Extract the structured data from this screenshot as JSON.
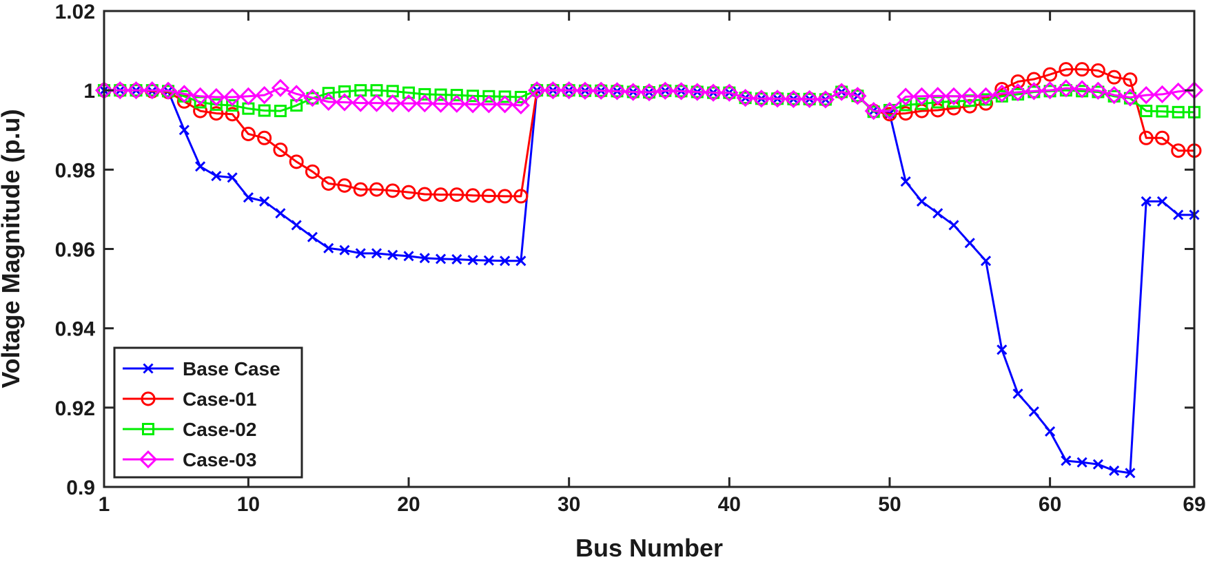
{
  "chart_data": {
    "type": "line",
    "title": "",
    "xlabel": "Bus Number",
    "ylabel": "Voltage Magnitude (p.u)",
    "xlim": [
      1,
      69
    ],
    "ylim": [
      0.9,
      1.02
    ],
    "xticks": [
      1,
      10,
      20,
      30,
      40,
      50,
      60,
      69
    ],
    "yticks": [
      0.9,
      0.92,
      0.94,
      0.96,
      0.98,
      1,
      1.02
    ],
    "xtick_labels": [
      "1",
      "10",
      "20",
      "30",
      "40",
      "50",
      "60",
      "69"
    ],
    "ytick_labels": [
      "0.9",
      "0.92",
      "0.94",
      "0.96",
      "0.98",
      "1",
      "1.02"
    ],
    "grid": false,
    "legend_position": "bottom-left",
    "x": [
      1,
      2,
      3,
      4,
      5,
      6,
      7,
      8,
      9,
      10,
      11,
      12,
      13,
      14,
      15,
      16,
      17,
      18,
      19,
      20,
      21,
      22,
      23,
      24,
      25,
      26,
      27,
      28,
      29,
      30,
      31,
      32,
      33,
      34,
      35,
      36,
      37,
      38,
      39,
      40,
      41,
      42,
      43,
      44,
      45,
      46,
      47,
      48,
      49,
      50,
      51,
      52,
      53,
      54,
      55,
      56,
      57,
      58,
      59,
      60,
      61,
      62,
      63,
      64,
      65,
      66,
      67,
      68,
      69
    ],
    "series": [
      {
        "name": "Base Case",
        "color": "#0000ff",
        "marker": "x",
        "values": [
          1.0,
          1.0,
          1.0,
          0.9998,
          0.9998,
          0.99,
          0.9808,
          0.9784,
          0.978,
          0.973,
          0.972,
          0.969,
          0.966,
          0.963,
          0.9602,
          0.9597,
          0.9589,
          0.9589,
          0.9585,
          0.9582,
          0.9577,
          0.9575,
          0.9574,
          0.9572,
          0.9571,
          0.957,
          0.957,
          1.0,
          1.0,
          1.0,
          0.9999,
          0.9999,
          0.9998,
          0.9996,
          0.9995,
          0.9999,
          0.9998,
          0.9996,
          0.9994,
          0.9994,
          0.9981,
          0.9979,
          0.9979,
          0.9978,
          0.9978,
          0.9977,
          0.9996,
          0.9986,
          0.9949,
          0.9941,
          0.977,
          0.972,
          0.969,
          0.966,
          0.9615,
          0.957,
          0.9346,
          0.9235,
          0.919,
          0.914,
          0.9066,
          0.9062,
          0.9057,
          0.9041,
          0.9035,
          0.972,
          0.972,
          0.9686,
          0.9686
        ]
      },
      {
        "name": "Case-01",
        "color": "#ff0000",
        "marker": "circle",
        "values": [
          1.0,
          1.0,
          1.0,
          0.9998,
          0.9996,
          0.9972,
          0.9948,
          0.9942,
          0.994,
          0.989,
          0.988,
          0.985,
          0.982,
          0.9795,
          0.9765,
          0.976,
          0.975,
          0.975,
          0.9747,
          0.9743,
          0.9738,
          0.9737,
          0.9737,
          0.9735,
          0.9734,
          0.9733,
          0.9733,
          1.0,
          1.0,
          1.0,
          0.9999,
          0.9999,
          0.9998,
          0.9996,
          0.9995,
          0.9999,
          0.9998,
          0.9996,
          0.9994,
          0.9994,
          0.9981,
          0.9979,
          0.9979,
          0.9978,
          0.9978,
          0.9977,
          0.9996,
          0.9986,
          0.9948,
          0.994,
          0.9942,
          0.9948,
          0.995,
          0.9955,
          0.996,
          0.9967,
          1.0003,
          1.0022,
          1.0028,
          1.004,
          1.0053,
          1.0053,
          1.005,
          1.0033,
          1.0027,
          0.988,
          0.988,
          0.9848,
          0.9848
        ]
      },
      {
        "name": "Case-02",
        "color": "#00ee00",
        "marker": "square",
        "values": [
          1.0,
          1.0,
          1.0,
          1.0,
          0.9998,
          0.9985,
          0.997,
          0.9964,
          0.9962,
          0.9954,
          0.9949,
          0.9948,
          0.9962,
          0.998,
          0.9993,
          0.9997,
          1.0,
          1.0,
          0.9998,
          0.9994,
          0.999,
          0.9989,
          0.9988,
          0.9986,
          0.9985,
          0.9984,
          0.9983,
          1.0,
          1.0,
          1.0,
          0.9999,
          0.9999,
          0.9998,
          0.9996,
          0.9995,
          0.9999,
          0.9998,
          0.9996,
          0.9994,
          0.9994,
          0.9981,
          0.9979,
          0.9979,
          0.9978,
          0.9978,
          0.9977,
          0.9996,
          0.9986,
          0.9946,
          0.995,
          0.9963,
          0.9966,
          0.997,
          0.9972,
          0.9974,
          0.9977,
          0.9985,
          0.999,
          0.9996,
          0.9998,
          1.0,
          0.9998,
          0.9996,
          0.9985,
          0.998,
          0.9948,
          0.9947,
          0.9945,
          0.9945
        ]
      },
      {
        "name": "Case-03",
        "color": "#ff00ff",
        "marker": "diamond",
        "values": [
          1.0,
          1.0,
          1.0,
          1.0,
          0.9999,
          0.9991,
          0.9985,
          0.9983,
          0.9983,
          0.9985,
          0.9988,
          1.0006,
          0.9991,
          0.9981,
          0.9971,
          0.997,
          0.9968,
          0.9968,
          0.9967,
          0.9967,
          0.9967,
          0.9966,
          0.9966,
          0.9965,
          0.9965,
          0.9965,
          0.9962,
          1.0,
          1.0,
          1.0,
          0.9999,
          0.9999,
          0.9998,
          0.9996,
          0.9995,
          0.9999,
          0.9998,
          0.9996,
          0.9994,
          0.9994,
          0.9981,
          0.9979,
          0.9979,
          0.9978,
          0.9978,
          0.9977,
          0.9996,
          0.9986,
          0.9948,
          0.9948,
          0.9984,
          0.9985,
          0.9986,
          0.9985,
          0.9985,
          0.9985,
          0.9992,
          0.9995,
          0.9998,
          1.0,
          1.0005,
          1.0003,
          0.9999,
          0.9988,
          0.9982,
          0.9988,
          0.999,
          0.9997,
          1.0
        ]
      }
    ]
  }
}
